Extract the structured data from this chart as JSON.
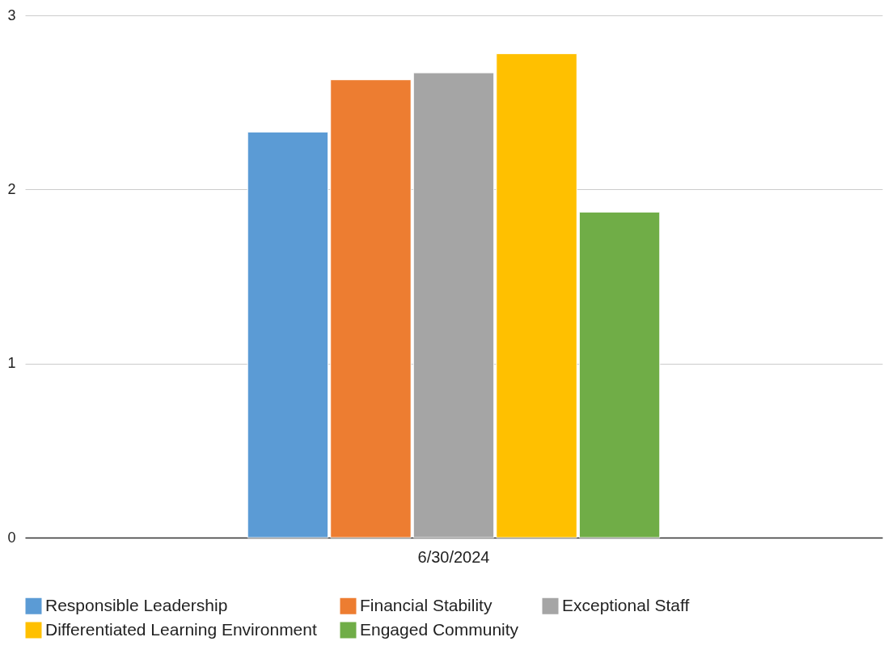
{
  "chart_data": {
    "type": "bar",
    "categories": [
      "6/30/2024"
    ],
    "series": [
      {
        "name": "Responsible Leadership",
        "color": "#5b9bd5",
        "values": [
          2.33
        ]
      },
      {
        "name": "Financial Stability",
        "color": "#ed7d31",
        "values": [
          2.63
        ]
      },
      {
        "name": "Exceptional Staff",
        "color": "#a5a5a5",
        "values": [
          2.67
        ]
      },
      {
        "name": "Differentiated Learning Environment",
        "color": "#ffc000",
        "values": [
          2.78
        ]
      },
      {
        "name": "Engaged Community",
        "color": "#70ad47",
        "values": [
          1.87
        ]
      }
    ],
    "ylim": [
      0,
      3
    ],
    "yticks": [
      0,
      1,
      2,
      3
    ],
    "grid": "y",
    "legend": "bottom"
  }
}
